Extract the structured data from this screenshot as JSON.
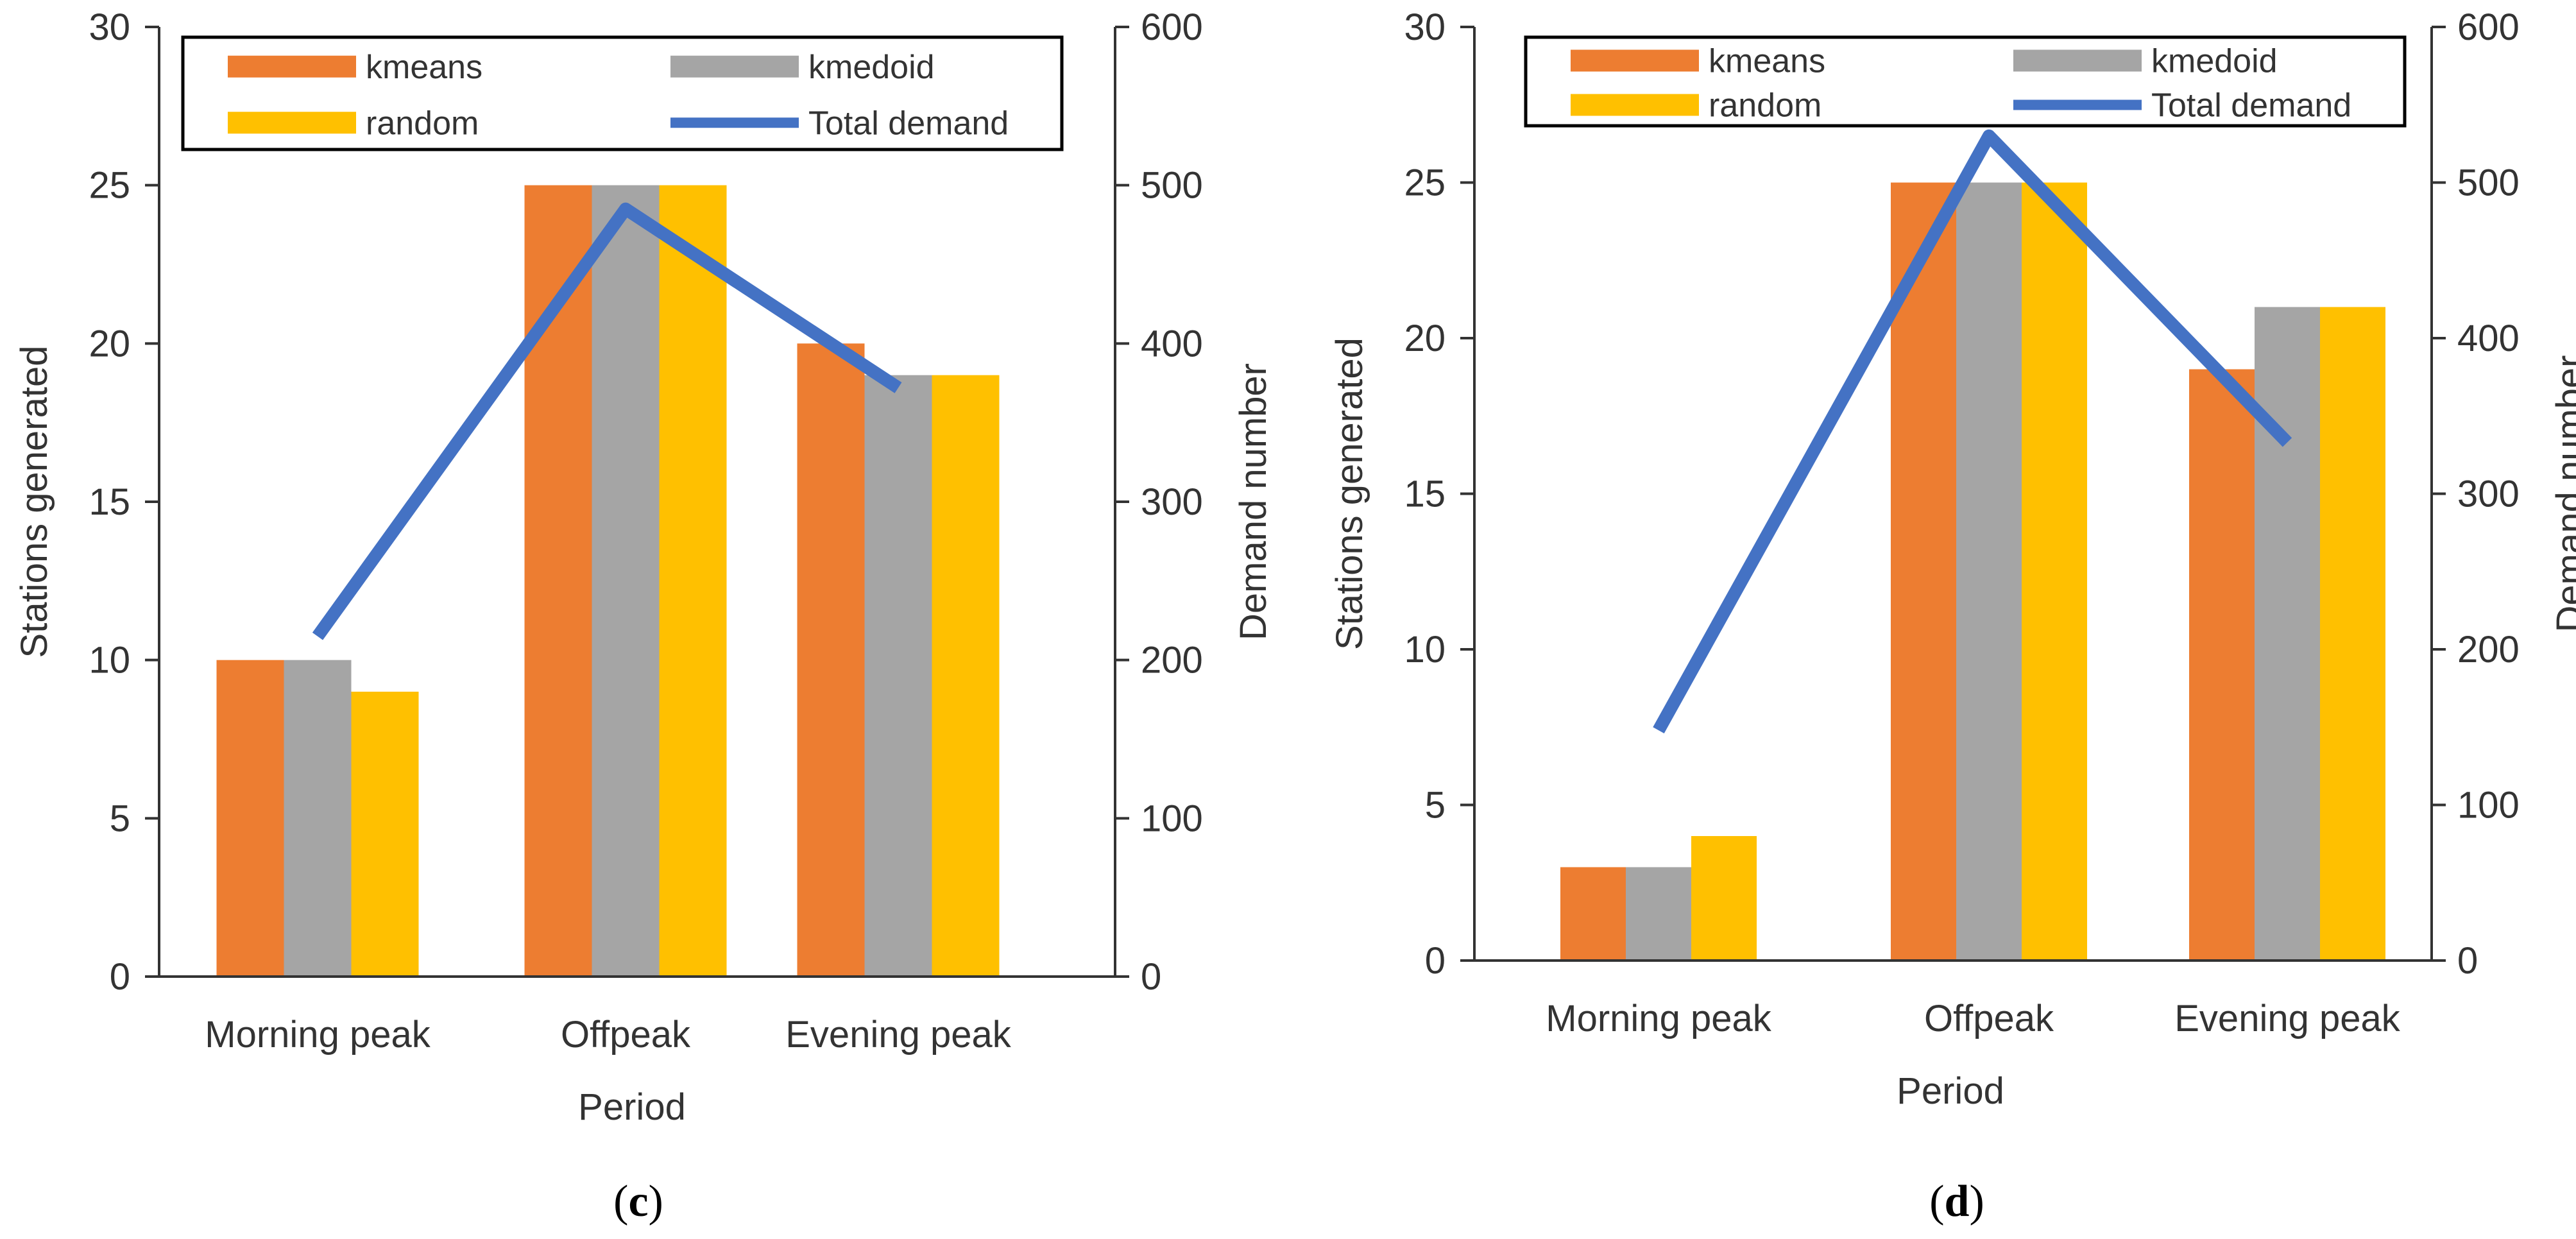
{
  "colors": {
    "kmeans": "#ED7D31",
    "kmedoid": "#A5A5A5",
    "random": "#FFC000",
    "total_demand": "#4472C4",
    "axis": "#333333"
  },
  "chart_data": [
    {
      "type": "bar",
      "panel": "c",
      "caption": {
        "open": "(",
        "letter": "c",
        "close": ")"
      },
      "categories": [
        "Morning peak",
        "Offpeak",
        "Evening peak"
      ],
      "series": [
        {
          "name": "kmeans",
          "axis": "left",
          "values": [
            10,
            25,
            20
          ]
        },
        {
          "name": "kmedoid",
          "axis": "left",
          "values": [
            10,
            25,
            19
          ]
        },
        {
          "name": "random",
          "axis": "left",
          "values": [
            9,
            25,
            19
          ]
        }
      ],
      "line_series": {
        "name": "Total demand",
        "axis": "right",
        "values": [
          215,
          485,
          372
        ]
      },
      "xlabel": "Period",
      "ylabel": "Stations generated",
      "y2label": "Demand number",
      "ylim": [
        0,
        30
      ],
      "yticks": [
        "0",
        "5",
        "10",
        "15",
        "20",
        "25",
        "30"
      ],
      "y2lim": [
        0,
        600
      ],
      "y2ticks": [
        "0",
        "100",
        "200",
        "300",
        "400",
        "500",
        "600"
      ],
      "legend": "top"
    },
    {
      "type": "bar",
      "panel": "d",
      "caption": {
        "open": "(",
        "letter": "d",
        "close": ")"
      },
      "categories": [
        "Morning peak",
        "Offpeak",
        "Evening peak"
      ],
      "series": [
        {
          "name": "kmeans",
          "axis": "left",
          "values": [
            3,
            25,
            19
          ]
        },
        {
          "name": "kmedoid",
          "axis": "left",
          "values": [
            3,
            25,
            21
          ]
        },
        {
          "name": "random",
          "axis": "left",
          "values": [
            4,
            25,
            21
          ]
        }
      ],
      "line_series": {
        "name": "Total demand",
        "axis": "right",
        "values": [
          148,
          530,
          333
        ]
      },
      "xlabel": "Period",
      "ylabel": "Stations generated",
      "y2label": "Demand number",
      "ylim": [
        0,
        30
      ],
      "yticks": [
        "0",
        "5",
        "10",
        "15",
        "20",
        "25",
        "30"
      ],
      "y2lim": [
        0,
        600
      ],
      "y2ticks": [
        "0",
        "100",
        "200",
        "300",
        "400",
        "500",
        "600"
      ],
      "legend": "top"
    }
  ]
}
